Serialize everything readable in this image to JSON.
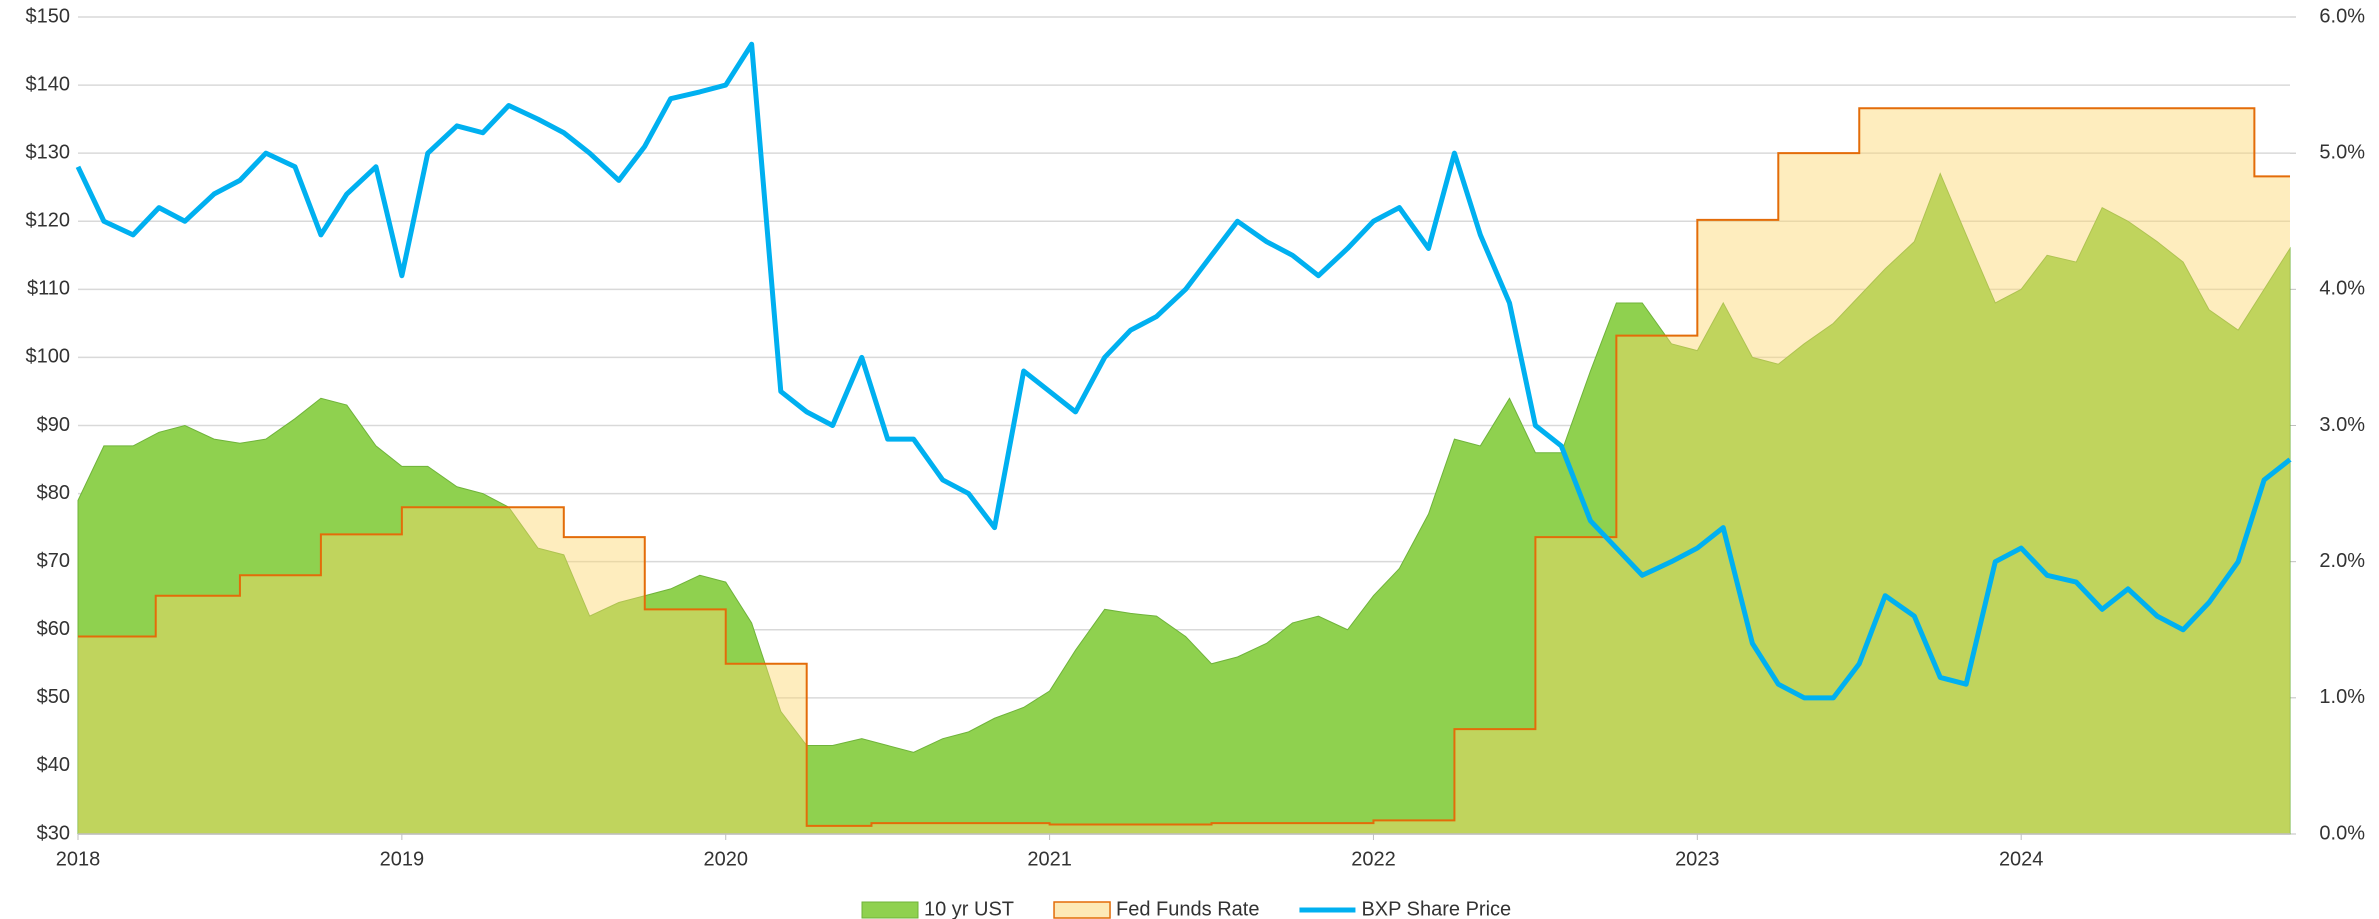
{
  "chart_data": {
    "type": "line",
    "x": [
      2018.0,
      2018.08,
      2018.17,
      2018.25,
      2018.33,
      2018.42,
      2018.5,
      2018.58,
      2018.67,
      2018.75,
      2018.83,
      2018.92,
      2019.0,
      2019.08,
      2019.17,
      2019.25,
      2019.33,
      2019.42,
      2019.5,
      2019.58,
      2019.67,
      2019.75,
      2019.83,
      2019.92,
      2020.0,
      2020.08,
      2020.17,
      2020.25,
      2020.33,
      2020.42,
      2020.5,
      2020.58,
      2020.67,
      2020.75,
      2020.83,
      2020.92,
      2021.0,
      2021.08,
      2021.17,
      2021.25,
      2021.33,
      2021.42,
      2021.5,
      2021.58,
      2021.67,
      2021.75,
      2021.83,
      2021.92,
      2022.0,
      2022.08,
      2022.17,
      2022.25,
      2022.33,
      2022.42,
      2022.5,
      2022.58,
      2022.67,
      2022.75,
      2022.83,
      2022.92,
      2023.0,
      2023.08,
      2023.17,
      2023.25,
      2023.33,
      2023.42,
      2023.5,
      2023.58,
      2023.67,
      2023.75,
      2023.83,
      2023.92,
      2024.0,
      2024.08,
      2024.17,
      2024.25,
      2024.33,
      2024.42,
      2024.5,
      2024.58,
      2024.67,
      2024.75,
      2024.83
    ],
    "xlim": [
      2018,
      2024.83
    ],
    "xticks": [
      2018,
      2019,
      2020,
      2021,
      2022,
      2023,
      2024
    ],
    "ylim": [
      30,
      150
    ],
    "yticks": [
      {
        "value": 30,
        "label": "$30"
      },
      {
        "value": 40,
        "label": "$40"
      },
      {
        "value": 50,
        "label": "$50"
      },
      {
        "value": 60,
        "label": "$60"
      },
      {
        "value": 70,
        "label": "$70"
      },
      {
        "value": 80,
        "label": "$80"
      },
      {
        "value": 90,
        "label": "$90"
      },
      {
        "value": 100,
        "label": "$100"
      },
      {
        "value": 110,
        "label": "$110"
      },
      {
        "value": 120,
        "label": "$120"
      },
      {
        "value": 130,
        "label": "$130"
      },
      {
        "value": 140,
        "label": "$140"
      },
      {
        "value": 150,
        "label": "$150"
      }
    ],
    "y2lim": [
      0,
      6
    ],
    "y2ticks": [
      {
        "value": 0,
        "label": "0.0%"
      },
      {
        "value": 1,
        "label": "1.0%"
      },
      {
        "value": 2,
        "label": "2.0%"
      },
      {
        "value": 3,
        "label": "3.0%"
      },
      {
        "value": 4,
        "label": "4.0%"
      },
      {
        "value": 5,
        "label": "5.0%"
      },
      {
        "value": 6,
        "label": "6.0%"
      }
    ],
    "grid": true,
    "legend": "bottom",
    "series": [
      {
        "name": "10 yr UST",
        "kind": "area",
        "axis": "y2",
        "color": "#8fd14f",
        "values": [
          2.45,
          2.85,
          2.85,
          2.95,
          3.0,
          2.9,
          2.87,
          2.9,
          3.05,
          3.2,
          3.15,
          2.85,
          2.7,
          2.7,
          2.55,
          2.5,
          2.4,
          2.1,
          2.05,
          1.6,
          1.7,
          1.75,
          1.8,
          1.9,
          1.85,
          1.55,
          0.9,
          0.65,
          0.65,
          0.7,
          0.65,
          0.6,
          0.7,
          0.75,
          0.85,
          0.93,
          1.05,
          1.35,
          1.65,
          1.62,
          1.6,
          1.45,
          1.25,
          1.3,
          1.4,
          1.55,
          1.6,
          1.5,
          1.75,
          1.95,
          2.35,
          2.9,
          2.85,
          3.2,
          2.8,
          2.8,
          3.4,
          3.9,
          3.9,
          3.6,
          3.55,
          3.9,
          3.5,
          3.45,
          3.6,
          3.75,
          3.95,
          4.15,
          4.35,
          4.85,
          4.4,
          3.9,
          4.0,
          4.25,
          4.2,
          4.6,
          4.5,
          4.35,
          4.2,
          3.85,
          3.7,
          4.0,
          4.3
        ]
      },
      {
        "name": "Fed Funds Rate",
        "kind": "step",
        "axis": "y2",
        "color": "#e36c09",
        "fill": "#fde9b6",
        "x": [
          2018,
          2018.24,
          2018.5,
          2018.75,
          2019,
          2019.5,
          2019.75,
          2020,
          2020.25,
          2020.45,
          2021.0,
          2021.5,
          2022.0,
          2022.25,
          2022.5,
          2022.75,
          2023,
          2023.25,
          2023.5,
          2024.72,
          2024.83
        ],
        "values": [
          1.45,
          1.75,
          1.9,
          2.2,
          2.4,
          2.18,
          1.65,
          1.25,
          0.06,
          0.08,
          0.07,
          0.08,
          0.1,
          0.77,
          2.18,
          3.66,
          4.51,
          5.0,
          5.33,
          4.83,
          4.83
        ]
      },
      {
        "name": "BXP Share Price",
        "kind": "line",
        "axis": "y",
        "color": "#00b0f0",
        "values": [
          128,
          120,
          118,
          122,
          120,
          124,
          126,
          130,
          128,
          118,
          124,
          128,
          112,
          130,
          134,
          133,
          137,
          135,
          133,
          130,
          126,
          131,
          138,
          139,
          140,
          146,
          95,
          92,
          90,
          100,
          88,
          88,
          82,
          80,
          75,
          98,
          95,
          92,
          100,
          104,
          106,
          110,
          115,
          120,
          117,
          115,
          112,
          116,
          120,
          122,
          116,
          130,
          118,
          108,
          90,
          87,
          76,
          72,
          68,
          70,
          72,
          75,
          58,
          52,
          50,
          50,
          55,
          65,
          62,
          53,
          52,
          70,
          72,
          68,
          67,
          63,
          66,
          62,
          60,
          64,
          70,
          82,
          85
        ]
      }
    ]
  }
}
